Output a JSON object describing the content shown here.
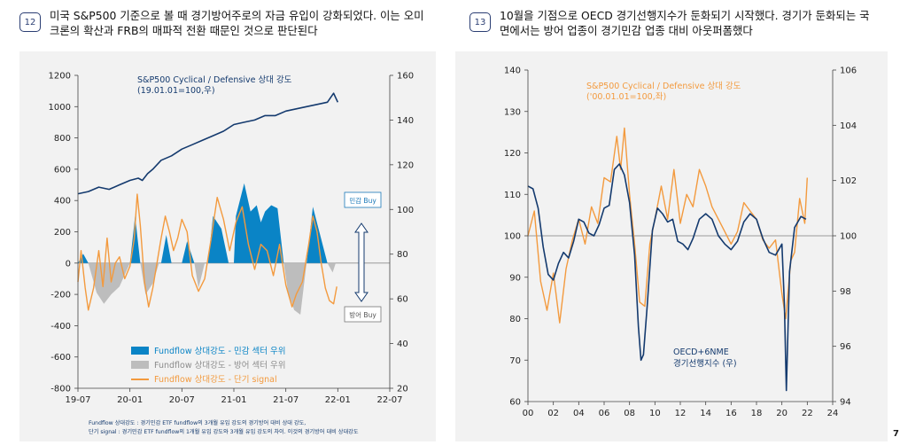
{
  "chart12": {
    "badge": "12",
    "headline": [
      "미국 S&P500 기준으로 볼 때 경기방어주로의 자금 유입이 강화되었다. 이는 오미",
      "크론의 확산과 FRB의 매파적 전환 때문인 것으로 판단된다"
    ],
    "series_label": [
      "S&P500 Cyclical / Defensive 상대 강도",
      "(19.01.01=100,우)"
    ],
    "buy_cyclical": "민감 Buy",
    "buy_defensive": "방어 Buy",
    "legend": [
      "Fundflow 상대강도 - 민감 섹터 우위",
      "Fundflow 상대강도 - 방어 섹터 우위",
      "Fundflow 상대강도 - 단기 signal"
    ],
    "footnote": [
      "Fundflow 상대강도 : 경기민감 ETF fundflow의 3개월 유입 강도의 경기방어 대비 상대 강도,",
      "단기 signal : 경기민감 ETF fundflow의 1개월 유입 강도와 3개월 유입 강도의 차이. 이것의 경기방어 대비 상대강도"
    ]
  },
  "chart13": {
    "badge": "13",
    "headline": [
      "10월을 기점으로 OECD 경기선행지수가 둔화되기 시작했다. 경기가 둔화되는 국",
      "면에서는 방어 업종이 경기민감 업종 대비 아웃퍼폼했다"
    ],
    "series_label": [
      "S&P500 Cyclical / Defensive 상대 강도",
      "('00.01.01=100,좌)"
    ],
    "oecd_label": [
      "OECD+6NME",
      "경기선행지수 (우)"
    ]
  },
  "page_number": "7",
  "colors": {
    "navy": "#143a6e",
    "blue": "#0a84c6",
    "gray": "#bdbdbd",
    "orange": "#f39a3e"
  },
  "chart_data": [
    {
      "type": "line",
      "x_ticks": [
        "19-07",
        "20-01",
        "20-07",
        "21-01",
        "21-07",
        "22-01",
        "22-07"
      ],
      "y_left": {
        "ticks": [
          -800,
          -600,
          -400,
          -200,
          0,
          200,
          400,
          600,
          800,
          1000,
          1200
        ],
        "ylim": [
          -800,
          1200
        ]
      },
      "y_right": {
        "ticks": [
          20,
          40,
          60,
          80,
          100,
          120,
          140,
          160
        ],
        "ylim": [
          20,
          160
        ]
      },
      "xlim": [
        2019.5,
        2022.5
      ],
      "series": [
        {
          "name": "S&P500 Cyclical / Defensive 상대 강도",
          "axis": "right",
          "points": [
            [
              2019.5,
              107
            ],
            [
              2019.6,
              108
            ],
            [
              2019.7,
              110
            ],
            [
              2019.8,
              109
            ],
            [
              2019.9,
              111
            ],
            [
              2020.0,
              113
            ],
            [
              2020.08,
              114
            ],
            [
              2020.12,
              113
            ],
            [
              2020.17,
              116
            ],
            [
              2020.22,
              118
            ],
            [
              2020.3,
              122
            ],
            [
              2020.4,
              124
            ],
            [
              2020.5,
              127
            ],
            [
              2020.6,
              129
            ],
            [
              2020.7,
              131
            ],
            [
              2020.8,
              133
            ],
            [
              2020.9,
              135
            ],
            [
              2021.0,
              138
            ],
            [
              2021.1,
              139
            ],
            [
              2021.2,
              140
            ],
            [
              2021.3,
              142
            ],
            [
              2021.4,
              142
            ],
            [
              2021.5,
              144
            ],
            [
              2021.6,
              145
            ],
            [
              2021.7,
              146
            ],
            [
              2021.8,
              147
            ],
            [
              2021.9,
              148
            ],
            [
              2021.96,
              152
            ],
            [
              2022.0,
              148
            ]
          ]
        },
        {
          "name": "Fundflow 상대강도 - 민감 섹터 우위",
          "axis": "left",
          "style": "area",
          "points": [
            [
              2019.5,
              0
            ],
            [
              2019.55,
              60
            ],
            [
              2019.6,
              0
            ],
            [
              2020.0,
              0
            ],
            [
              2020.05,
              300
            ],
            [
              2020.1,
              0
            ],
            [
              2020.3,
              0
            ],
            [
              2020.35,
              180
            ],
            [
              2020.4,
              0
            ],
            [
              2020.5,
              0
            ],
            [
              2020.55,
              140
            ],
            [
              2020.62,
              0
            ],
            [
              2020.75,
              0
            ],
            [
              2020.8,
              300
            ],
            [
              2020.88,
              220
            ],
            [
              2020.95,
              0
            ],
            [
              2021.0,
              0
            ],
            [
              2021.02,
              300
            ],
            [
              2021.1,
              510
            ],
            [
              2021.16,
              330
            ],
            [
              2021.22,
              370
            ],
            [
              2021.26,
              260
            ],
            [
              2021.3,
              330
            ],
            [
              2021.36,
              370
            ],
            [
              2021.42,
              350
            ],
            [
              2021.48,
              0
            ],
            [
              2021.7,
              0
            ],
            [
              2021.76,
              360
            ],
            [
              2021.83,
              180
            ],
            [
              2021.9,
              0
            ]
          ]
        },
        {
          "name": "Fundflow 상대강도 - 방어 섹터 우위",
          "axis": "left",
          "style": "area",
          "points": [
            [
              2019.6,
              0
            ],
            [
              2019.68,
              -190
            ],
            [
              2019.75,
              -260
            ],
            [
              2019.82,
              -200
            ],
            [
              2019.9,
              -150
            ],
            [
              2020.0,
              0
            ],
            [
              2020.1,
              0
            ],
            [
              2020.15,
              -200
            ],
            [
              2020.22,
              -130
            ],
            [
              2020.28,
              0
            ],
            [
              2020.62,
              0
            ],
            [
              2020.66,
              -160
            ],
            [
              2020.72,
              0
            ],
            [
              2021.48,
              0
            ],
            [
              2021.52,
              -180
            ],
            [
              2021.58,
              -300
            ],
            [
              2021.64,
              -330
            ],
            [
              2021.7,
              0
            ],
            [
              2021.9,
              0
            ],
            [
              2021.95,
              -60
            ],
            [
              2021.98,
              0
            ]
          ]
        },
        {
          "name": "Fundflow 상대강도 - 단기 signal",
          "axis": "left",
          "points": [
            [
              2019.5,
              -120
            ],
            [
              2019.53,
              80
            ],
            [
              2019.57,
              -160
            ],
            [
              2019.6,
              -300
            ],
            [
              2019.65,
              -160
            ],
            [
              2019.7,
              80
            ],
            [
              2019.74,
              -150
            ],
            [
              2019.78,
              160
            ],
            [
              2019.82,
              -120
            ],
            [
              2019.86,
              0
            ],
            [
              2019.9,
              40
            ],
            [
              2019.95,
              -100
            ],
            [
              2020.0,
              -20
            ],
            [
              2020.04,
              150
            ],
            [
              2020.07,
              440
            ],
            [
              2020.1,
              240
            ],
            [
              2020.14,
              -120
            ],
            [
              2020.18,
              -280
            ],
            [
              2020.22,
              -160
            ],
            [
              2020.26,
              0
            ],
            [
              2020.3,
              160
            ],
            [
              2020.34,
              300
            ],
            [
              2020.38,
              200
            ],
            [
              2020.42,
              80
            ],
            [
              2020.46,
              160
            ],
            [
              2020.5,
              280
            ],
            [
              2020.55,
              200
            ],
            [
              2020.6,
              -80
            ],
            [
              2020.66,
              -180
            ],
            [
              2020.72,
              -100
            ],
            [
              2020.78,
              150
            ],
            [
              2020.84,
              420
            ],
            [
              2020.9,
              280
            ],
            [
              2020.96,
              80
            ],
            [
              2021.02,
              260
            ],
            [
              2021.08,
              360
            ],
            [
              2021.14,
              120
            ],
            [
              2021.2,
              -40
            ],
            [
              2021.26,
              120
            ],
            [
              2021.32,
              80
            ],
            [
              2021.38,
              -80
            ],
            [
              2021.44,
              120
            ],
            [
              2021.5,
              -140
            ],
            [
              2021.56,
              -280
            ],
            [
              2021.6,
              -200
            ],
            [
              2021.66,
              -120
            ],
            [
              2021.72,
              120
            ],
            [
              2021.76,
              300
            ],
            [
              2021.8,
              200
            ],
            [
              2021.84,
              0
            ],
            [
              2021.88,
              -160
            ],
            [
              2021.92,
              -240
            ],
            [
              2021.96,
              -260
            ],
            [
              2021.99,
              -150
            ]
          ]
        }
      ]
    },
    {
      "type": "line",
      "x_ticks": [
        "00",
        "02",
        "04",
        "06",
        "08",
        "10",
        "12",
        "14",
        "16",
        "18",
        "20",
        "22",
        "24"
      ],
      "y_left": {
        "ticks": [
          60,
          70,
          80,
          90,
          100,
          110,
          120,
          130,
          140
        ],
        "ylim": [
          60,
          140
        ]
      },
      "y_right": {
        "ticks": [
          94,
          96,
          98,
          100,
          102,
          104,
          106
        ],
        "ylim": [
          94,
          106
        ]
      },
      "xlim": [
        2000,
        2024
      ],
      "series": [
        {
          "name": "S&P500 Cyclical / Defensive 상대 강도",
          "axis": "left",
          "points": [
            [
              2000,
              100
            ],
            [
              2000.5,
              106
            ],
            [
              2001,
              89
            ],
            [
              2001.5,
              82
            ],
            [
              2002,
              91
            ],
            [
              2002.5,
              79
            ],
            [
              2003,
              92
            ],
            [
              2003.5,
              99
            ],
            [
              2004,
              104
            ],
            [
              2004.5,
              98
            ],
            [
              2005,
              107
            ],
            [
              2005.5,
              103
            ],
            [
              2006,
              114
            ],
            [
              2006.5,
              113
            ],
            [
              2007,
              124
            ],
            [
              2007.3,
              116
            ],
            [
              2007.6,
              126
            ],
            [
              2008,
              110
            ],
            [
              2008.4,
              98
            ],
            [
              2008.8,
              84
            ],
            [
              2009.2,
              83
            ],
            [
              2009.6,
              98
            ],
            [
              2010,
              104
            ],
            [
              2010.5,
              112
            ],
            [
              2011,
              104
            ],
            [
              2011.5,
              116
            ],
            [
              2012,
              103
            ],
            [
              2012.5,
              110
            ],
            [
              2013,
              107
            ],
            [
              2013.5,
              116
            ],
            [
              2014,
              112
            ],
            [
              2014.5,
              107
            ],
            [
              2015,
              104
            ],
            [
              2015.5,
              101
            ],
            [
              2016,
              98
            ],
            [
              2016.5,
              101
            ],
            [
              2017,
              108
            ],
            [
              2017.5,
              106
            ],
            [
              2018,
              104
            ],
            [
              2018.5,
              99
            ],
            [
              2019,
              97
            ],
            [
              2019.5,
              99
            ],
            [
              2020,
              86
            ],
            [
              2020.3,
              80
            ],
            [
              2020.7,
              94
            ],
            [
              2021,
              96
            ],
            [
              2021.4,
              109
            ],
            [
              2021.8,
              103
            ],
            [
              2022,
              114
            ]
          ]
        },
        {
          "name": "OECD+6NME 경기선행지수",
          "axis": "right",
          "points": [
            [
              2000,
              101.8
            ],
            [
              2000.4,
              101.7
            ],
            [
              2000.8,
              101
            ],
            [
              2001.2,
              99.6
            ],
            [
              2001.6,
              98.6
            ],
            [
              2002,
              98.4
            ],
            [
              2002.4,
              99
            ],
            [
              2002.8,
              99.4
            ],
            [
              2003.2,
              99.2
            ],
            [
              2003.6,
              99.8
            ],
            [
              2004,
              100.6
            ],
            [
              2004.4,
              100.5
            ],
            [
              2004.8,
              100.1
            ],
            [
              2005.2,
              100
            ],
            [
              2005.6,
              100.4
            ],
            [
              2006,
              101
            ],
            [
              2006.4,
              101.1
            ],
            [
              2006.8,
              102.4
            ],
            [
              2007.2,
              102.6
            ],
            [
              2007.6,
              102.2
            ],
            [
              2008,
              101.2
            ],
            [
              2008.4,
              99.3
            ],
            [
              2008.7,
              96.7
            ],
            [
              2008.9,
              95.5
            ],
            [
              2009.1,
              95.7
            ],
            [
              2009.4,
              97.5
            ],
            [
              2009.8,
              100.2
            ],
            [
              2010.2,
              101
            ],
            [
              2010.6,
              100.8
            ],
            [
              2011,
              100.5
            ],
            [
              2011.4,
              100.6
            ],
            [
              2011.8,
              99.8
            ],
            [
              2012.2,
              99.7
            ],
            [
              2012.6,
              99.5
            ],
            [
              2013,
              99.9
            ],
            [
              2013.5,
              100.6
            ],
            [
              2014,
              100.8
            ],
            [
              2014.5,
              100.6
            ],
            [
              2015,
              100
            ],
            [
              2015.5,
              99.7
            ],
            [
              2016,
              99.5
            ],
            [
              2016.5,
              99.8
            ],
            [
              2017,
              100.5
            ],
            [
              2017.5,
              100.8
            ],
            [
              2018,
              100.6
            ],
            [
              2018.5,
              99.9
            ],
            [
              2019,
              99.4
            ],
            [
              2019.5,
              99.3
            ],
            [
              2020,
              99.7
            ],
            [
              2020.2,
              97.5
            ],
            [
              2020.35,
              94.4
            ],
            [
              2020.6,
              98.7
            ],
            [
              2021,
              100.3
            ],
            [
              2021.5,
              100.7
            ],
            [
              2021.9,
              100.6
            ]
          ]
        }
      ]
    }
  ]
}
